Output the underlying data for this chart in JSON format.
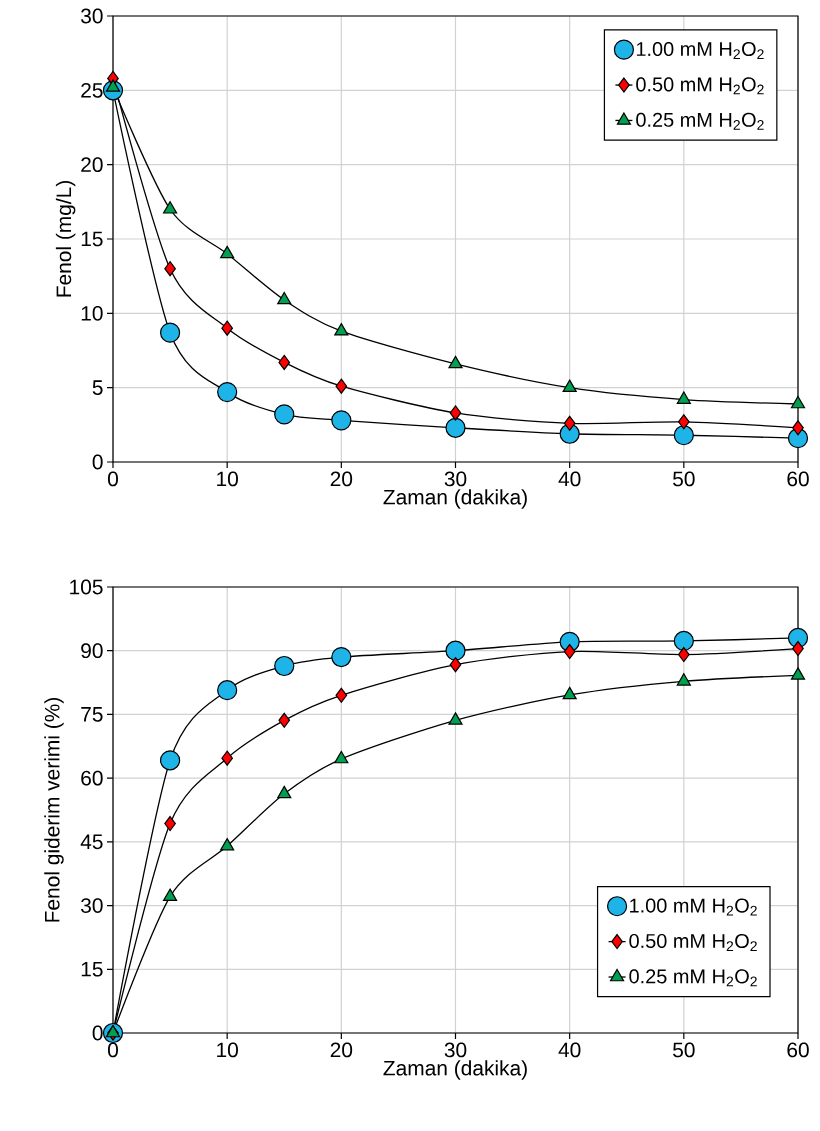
{
  "chart_data": [
    {
      "type": "line",
      "xlabel": "Zaman (dakika)",
      "ylabel": "Fenol (mg/L)",
      "x": [
        0,
        5,
        10,
        15,
        20,
        30,
        40,
        50,
        60
      ],
      "xlim": [
        0,
        60
      ],
      "xticks": [
        0,
        10,
        20,
        30,
        40,
        50,
        60
      ],
      "ylim": [
        0,
        30
      ],
      "yticks": [
        0,
        5,
        10,
        15,
        20,
        25,
        30
      ],
      "grid": true,
      "legend": "top right",
      "series": [
        {
          "name": "1.00 mM H$_{2}$O$_{2}$",
          "color": "#1fb4e8",
          "marker": "circle",
          "values": [
            25.0,
            8.7,
            4.7,
            3.2,
            2.8,
            2.3,
            1.9,
            1.8,
            1.6
          ]
        },
        {
          "name": "0.50 mM H$_{2}$O$_{2}$",
          "color": "#ff0000",
          "marker": "diamond",
          "values": [
            25.8,
            13.0,
            9.0,
            6.7,
            5.1,
            3.3,
            2.6,
            2.7,
            2.3
          ]
        },
        {
          "name": "0.25 mM H$_{2}$O$_{2}$",
          "color": "#00a050",
          "marker": "triangle",
          "values": [
            25.2,
            17.0,
            14.0,
            10.9,
            8.8,
            6.6,
            5.0,
            4.2,
            3.9
          ]
        }
      ]
    },
    {
      "type": "line",
      "xlabel": "Zaman (dakika)",
      "ylabel": "Fenol giderim verimi (%)",
      "x": [
        0,
        5,
        10,
        15,
        20,
        30,
        40,
        50,
        60
      ],
      "xlim": [
        0,
        60
      ],
      "xticks": [
        0,
        10,
        20,
        30,
        40,
        50,
        60
      ],
      "ylim": [
        0,
        105
      ],
      "yticks": [
        0,
        15,
        30,
        45,
        60,
        75,
        90,
        105
      ],
      "grid": true,
      "legend": "bottom right",
      "series": [
        {
          "name": "1.00 mM H$_{2}$O$_{2}$",
          "color": "#1fb4e8",
          "marker": "circle",
          "values": [
            0,
            64.2,
            80.7,
            86.4,
            88.5,
            90.0,
            92.1,
            92.3,
            93.0
          ]
        },
        {
          "name": "0.50 mM H$_{2}$O$_{2}$",
          "color": "#ff0000",
          "marker": "diamond",
          "values": [
            0,
            49.3,
            64.7,
            73.6,
            79.5,
            86.7,
            89.8,
            89.1,
            90.5
          ]
        },
        {
          "name": "0.25 mM H$_{2}$O$_{2}$",
          "color": "#00a050",
          "marker": "triangle",
          "values": [
            0,
            32.1,
            44.0,
            56.3,
            64.5,
            73.6,
            79.6,
            82.8,
            84.2
          ]
        }
      ]
    }
  ]
}
